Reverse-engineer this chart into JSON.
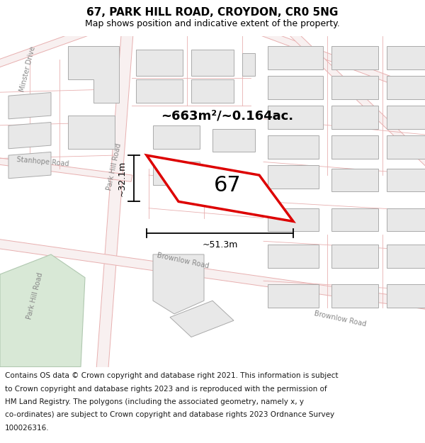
{
  "title": "67, PARK HILL ROAD, CROYDON, CR0 5NG",
  "subtitle": "Map shows position and indicative extent of the property.",
  "footer_lines": [
    "Contains OS data © Crown copyright and database right 2021. This information is subject",
    "to Crown copyright and database rights 2023 and is reproduced with the permission of",
    "HM Land Registry. The polygons (including the associated geometry, namely x, y",
    "co-ordinates) are subject to Crown copyright and database rights 2023 Ordnance Survey",
    "100026316."
  ],
  "map_bg": "#fafafa",
  "title_area_bg": "#ffffff",
  "footer_area_bg": "#ffffff",
  "road_line_color": "#e8b0b0",
  "road_fill_color": "#f8f0f0",
  "building_fill": "#e8e8e8",
  "building_stroke": "#aaaaaa",
  "green_fill": "#d8e8d6",
  "green_stroke": "#b0c8b0",
  "property_stroke": "#dd0000",
  "property_fill": "#ffffff",
  "title_fontsize": 11,
  "subtitle_fontsize": 9,
  "footer_fontsize": 7.5,
  "label_67": "67",
  "area_label": "~663m²/~0.164ac.",
  "dim_width": "~51.3m",
  "dim_height": "~32.1m",
  "road_label_color": "#888888",
  "road_label_size": 7.0,
  "prop_label_size": 22,
  "area_label_size": 13,
  "dim_label_size": 9
}
